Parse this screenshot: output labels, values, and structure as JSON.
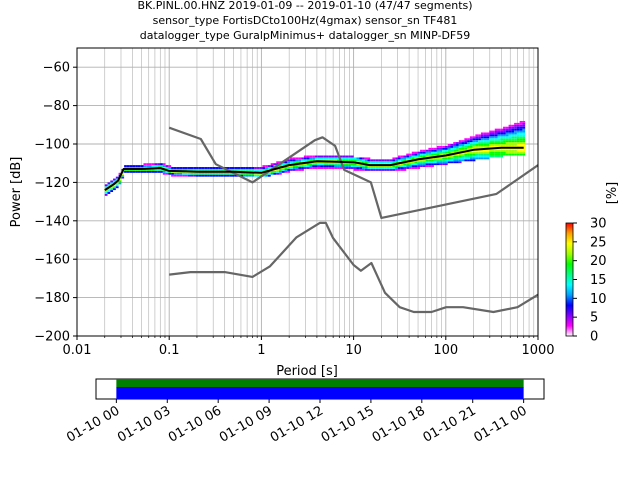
{
  "title_lines": [
    "BK.PINL.00.HNZ   2019-01-09 -- 2019-01-10  (47/47 segments)",
    "sensor_type FortisDCto100Hz(4gmax) sensor_sn TF481",
    "datalogger_type GuralpMinimus+ datalogger_sn MINP-DF59"
  ],
  "colors": {
    "nlnm_nhnm": "#666666",
    "mode_line": "#000000",
    "segment_bar_top": "#008000",
    "segment_bar_bottom": "#0000ff",
    "grid": "#b0b0b0"
  },
  "chart_data": [
    {
      "type": "heatmap",
      "name": "ppsd",
      "xlabel": "Period [s]",
      "ylabel": "Power [dB]",
      "xscale": "log",
      "xlim": [
        0.01,
        1000
      ],
      "ylim": [
        -200,
        -50
      ],
      "xticks": [
        0.01,
        0.1,
        1,
        10,
        100,
        1000
      ],
      "xtick_labels": [
        "0.01",
        "0.1",
        "1",
        "10",
        "100",
        "1000"
      ],
      "yticks": [
        -200,
        -180,
        -160,
        -140,
        -120,
        -100,
        -80,
        -60
      ],
      "ytick_labels": [
        "−200",
        "−180",
        "−160",
        "−140",
        "−120",
        "−100",
        "−80",
        "−60"
      ],
      "grid": true,
      "colorbar": {
        "label": "[%]",
        "range": [
          0,
          30
        ],
        "ticks": [
          0,
          5,
          10,
          15,
          20,
          25,
          30
        ],
        "tick_labels": [
          "0",
          "5",
          "10",
          "15",
          "20",
          "25",
          "30"
        ],
        "colormap": [
          "#ffffff",
          "#ff00ff",
          "#8000ff",
          "#0000ff",
          "#00a0ff",
          "#00ffff",
          "#00ff80",
          "#00ff00",
          "#a0ff00",
          "#ffff00",
          "#ffa000",
          "#ff0000"
        ]
      },
      "series": [
        {
          "role": "high-noise-model",
          "style": "line",
          "x": [
            0.1,
            0.22,
            0.32,
            0.8,
            3.8,
            4.6,
            6.3,
            7.9,
            15.4,
            20,
            354.8,
            1000
          ],
          "y": [
            -91.5,
            -97.4,
            -110.5,
            -120,
            -98,
            -96.5,
            -101,
            -113.5,
            -120,
            -138.5,
            -126,
            -111
          ]
        },
        {
          "role": "low-noise-model",
          "style": "line",
          "x": [
            0.1,
            0.17,
            0.4,
            0.8,
            1.24,
            2.4,
            4.3,
            5,
            6,
            10,
            12,
            15.6,
            21.9,
            31.6,
            45,
            70,
            101,
            154,
            328,
            600,
            1000
          ],
          "y": [
            -168,
            -166.7,
            -166.7,
            -169.2,
            -163.7,
            -148.6,
            -141.1,
            -141.1,
            -149,
            -163,
            -166,
            -162,
            -177.5,
            -185,
            -187.5,
            -187.5,
            -185,
            -185,
            -187.5,
            -185,
            -178.5
          ]
        },
        {
          "role": "mode",
          "style": "line",
          "x": [
            0.02,
            0.025,
            0.028,
            0.032,
            0.05,
            0.08,
            0.1,
            0.2,
            0.5,
            1,
            2,
            4,
            10,
            15,
            25,
            50,
            100,
            200,
            400,
            700
          ],
          "y": [
            -124,
            -121,
            -119,
            -113,
            -113,
            -112.5,
            -114,
            -114.5,
            -114.5,
            -115,
            -111,
            -109,
            -109.5,
            -111,
            -111,
            -108,
            -106,
            -103,
            -102,
            -102
          ]
        }
      ],
      "histogram_band": {
        "x": [
          0.02,
          0.025,
          0.028,
          0.032,
          0.05,
          0.08,
          0.1,
          0.2,
          0.5,
          1,
          2,
          4,
          10,
          15,
          25,
          50,
          100,
          200,
          400,
          700
        ],
        "low": [
          -127,
          -123,
          -121,
          -115,
          -115,
          -115,
          -116,
          -117,
          -117,
          -117,
          -114,
          -112,
          -113,
          -114,
          -114,
          -112,
          -110,
          -108,
          -106,
          -106
        ],
        "high": [
          -121,
          -118,
          -116,
          -111,
          -111,
          -110,
          -112,
          -112,
          -112,
          -112,
          -108,
          -106,
          -107,
          -108,
          -108,
          -104,
          -101,
          -96,
          -92,
          -88
        ]
      }
    },
    {
      "type": "bar",
      "name": "segment-coverage",
      "x_tick_labels": [
        "01-10 00",
        "01-10 03",
        "01-10 06",
        "01-10 09",
        "01-10 12",
        "01-10 15",
        "01-10 18",
        "01-10 21",
        "01-11 00"
      ],
      "x_tick_hours": [
        0,
        3,
        6,
        9,
        12,
        15,
        18,
        21,
        24
      ],
      "xlim_hours": [
        -1.2,
        25.2
      ],
      "coverage_hours": [
        0,
        24
      ],
      "segments": 47
    }
  ]
}
